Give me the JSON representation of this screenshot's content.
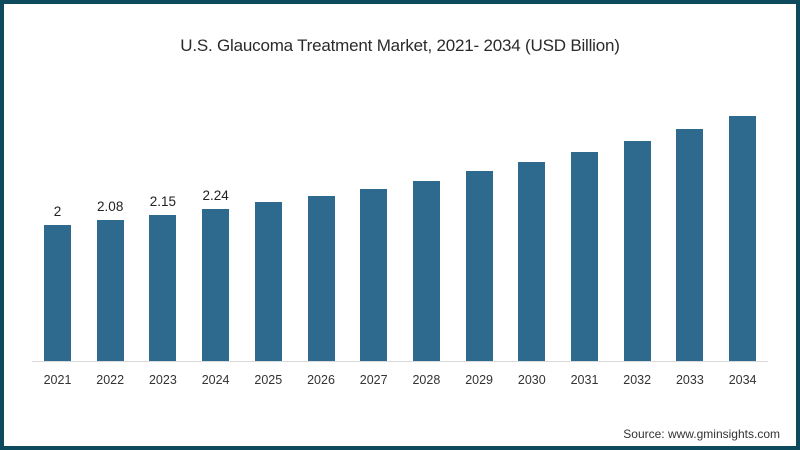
{
  "chart_data": {
    "type": "bar",
    "title": "U.S. Glaucoma Treatment Market, 2021- 2034 (USD Billion)",
    "xlabel": "",
    "ylabel": "",
    "categories": [
      "2021",
      "2022",
      "2023",
      "2024",
      "2025",
      "2026",
      "2027",
      "2028",
      "2029",
      "2030",
      "2031",
      "2032",
      "2033",
      "2034"
    ],
    "values": [
      2.0,
      2.08,
      2.15,
      2.24,
      2.34,
      2.43,
      2.53,
      2.65,
      2.79,
      2.93,
      3.07,
      3.24,
      3.41,
      3.6
    ],
    "data_labels": [
      "2",
      "2.08",
      "2.15",
      "2.24",
      "",
      "",
      "",
      "",
      "",
      "",
      "",
      "",
      "",
      ""
    ],
    "ylim": [
      0,
      3.8
    ],
    "grid": false,
    "legend": null,
    "bar_color": "#2e6a8e"
  },
  "source": "Source: www.gminsights.com",
  "colors": {
    "frame": "#0e4a5e",
    "bar": "#2e6a8e",
    "background": "#ffffff"
  }
}
